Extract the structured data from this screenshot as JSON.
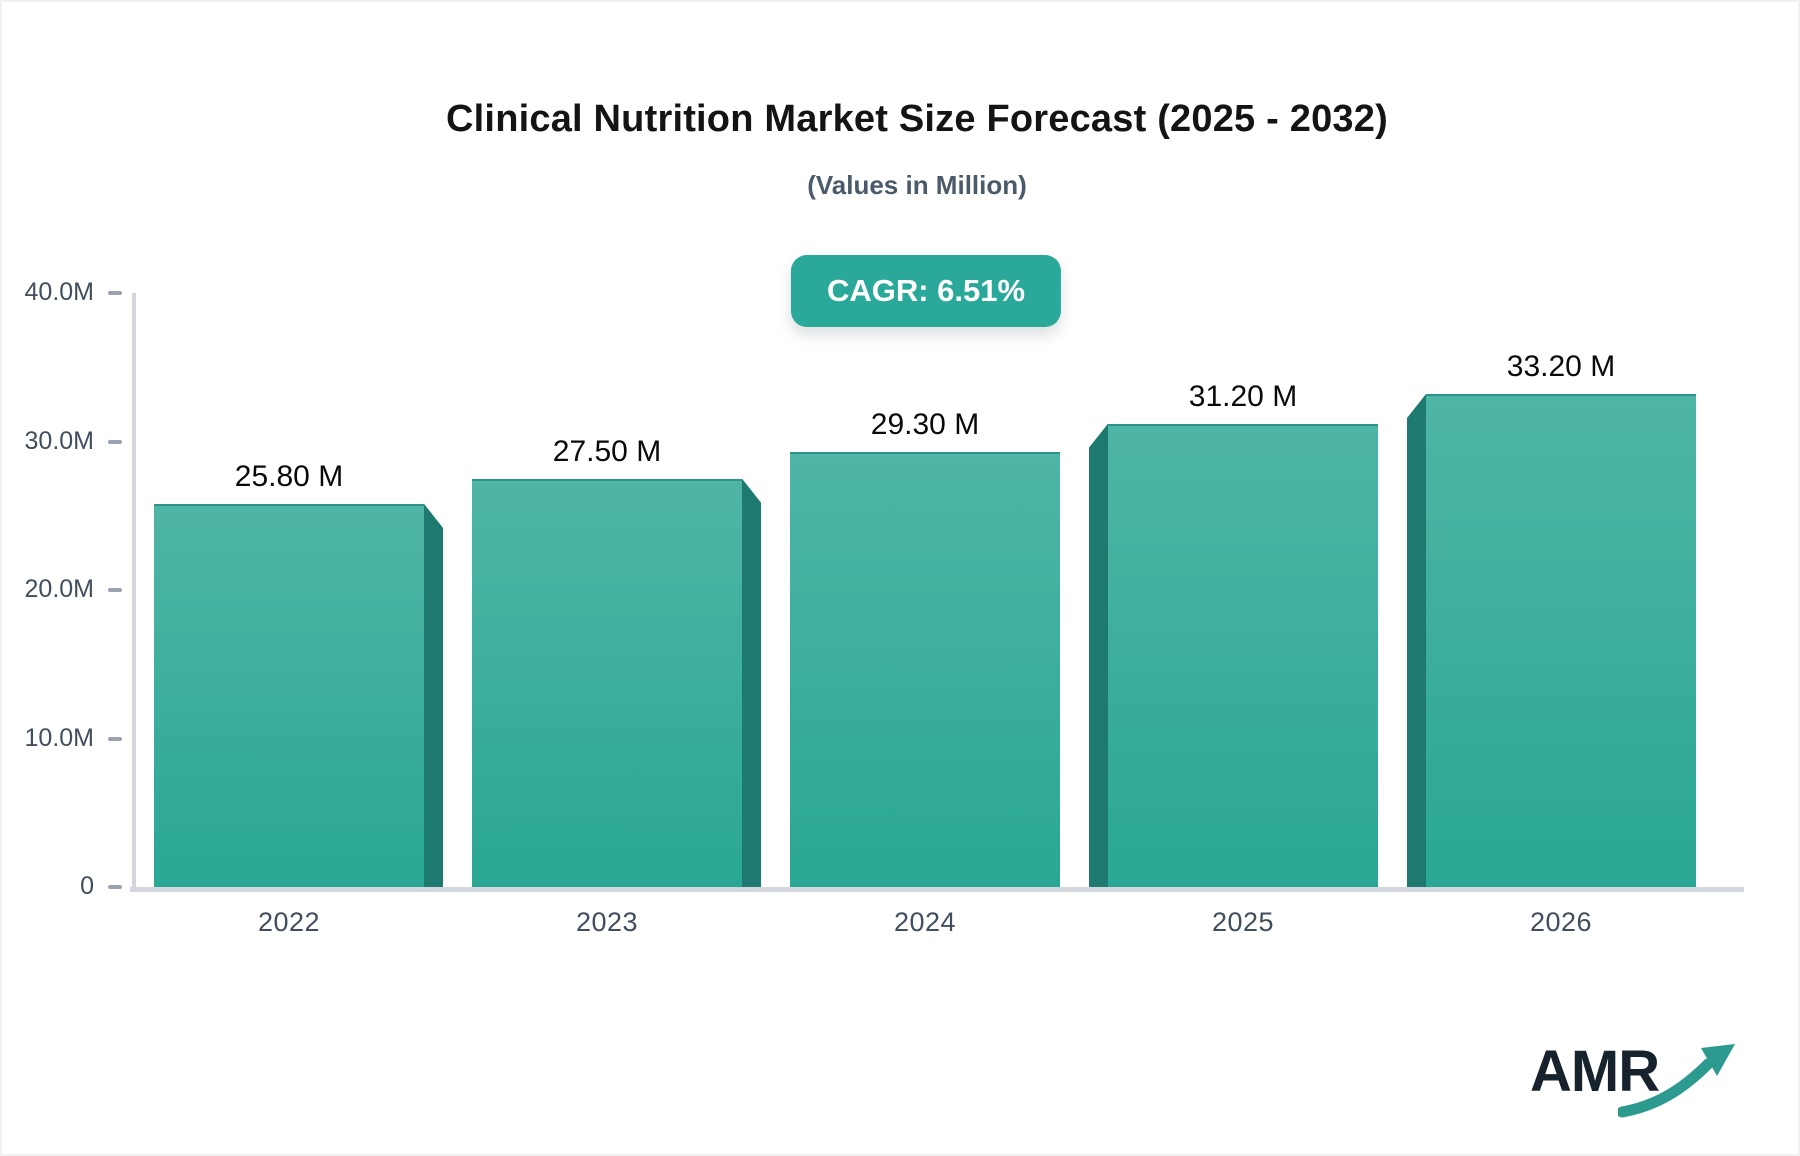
{
  "page": {
    "title": "Clinical Nutrition Market Size Forecast (2025 - 2032)",
    "subtitle": "(Values in Million)",
    "cagr_badge_label": "CAGR: 6.51%"
  },
  "logo": {
    "text": "AMR"
  },
  "chart_data": {
    "type": "bar",
    "title": "Clinical Nutrition Market Size Forecast (2025 - 2032)",
    "subtitle": "(Values in Million)",
    "unit": "Million",
    "cagr": "6.51%",
    "categories": [
      "2022",
      "2023",
      "2024",
      "2025",
      "2026"
    ],
    "values": [
      25.8,
      27.5,
      29.3,
      31.2,
      33.2
    ],
    "bar_labels": [
      "25.80 M",
      "27.50 M",
      "29.30 M",
      "31.20 M",
      "33.20 M"
    ],
    "ylim": [
      0,
      40
    ],
    "yticks": [
      {
        "value": 0,
        "label": "0"
      },
      {
        "value": 10,
        "label": "10.0M"
      },
      {
        "value": 20,
        "label": "20.0M"
      },
      {
        "value": 30,
        "label": "30.0M"
      },
      {
        "value": 40,
        "label": "40.0M"
      }
    ],
    "grid": false,
    "legend": "none",
    "bar_3d_sides": [
      "right",
      "right",
      "none",
      "left",
      "left"
    ],
    "colors": {
      "bar_top": "#4fb5a6",
      "bar_bottom": "#2aa795",
      "bar_top_edge": "#2a9488",
      "bar_side": "#1e7a70",
      "badge": "#2aa99a",
      "axis_line": "#d3d6db",
      "tick_dash": "#9aa3b2",
      "tick_label": "#414e5e",
      "value_label": "#0a0a0a",
      "title": "#141414",
      "subtitle": "#4b5a6b",
      "logo_text": "#16222c",
      "logo_arrow": "#2d9a8f"
    }
  }
}
